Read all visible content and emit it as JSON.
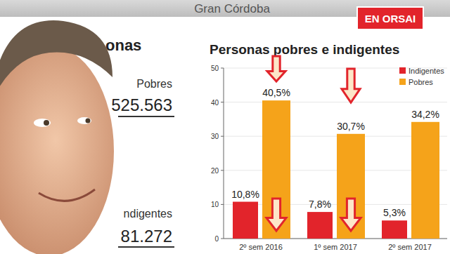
{
  "chart_data": {
    "type": "bar",
    "title": "Personas pobres e indigentes",
    "subtitle": "Gran Córdoba",
    "annotations": [
      "EN ORSAI",
      "onas",
      "Pobres",
      "525.563",
      "ndigentes",
      "81.272"
    ],
    "categories": [
      "2º sem 2016",
      "1º sem 2017",
      "2º sem 2017"
    ],
    "series": [
      {
        "name": "Indigentes",
        "color": "#e2242b",
        "values": [
          10.8,
          7.8,
          5.3
        ],
        "value_labels": [
          "10,8%",
          "7,8%",
          "5,3%"
        ]
      },
      {
        "name": "Pobres",
        "color": "#f5a31a",
        "values": [
          40.5,
          30.7,
          34.2
        ],
        "value_labels": [
          "40,5%",
          "30,7%",
          "34,2%"
        ]
      }
    ],
    "ylim": [
      0,
      50
    ],
    "yticks": [
      0,
      10,
      20,
      30,
      40,
      50
    ],
    "grid": true,
    "legend": "upper right",
    "data_labels": true
  }
}
